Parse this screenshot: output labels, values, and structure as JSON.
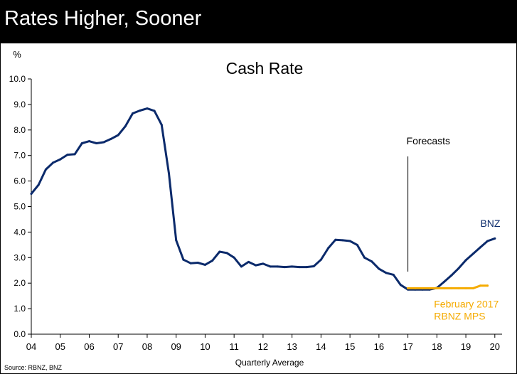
{
  "header": {
    "title": "Rates Higher, Sooner"
  },
  "source": "Source: RBNZ, BNZ",
  "colors": {
    "header_bg": "#000000",
    "bnz": "#0b2a6b",
    "mps": "#f5ab00",
    "text": "#000000"
  },
  "chart_data": {
    "type": "line",
    "title": "Cash Rate",
    "xlabel": "Quarterly Average",
    "ylabel": "%",
    "ylim": [
      0,
      10
    ],
    "yticks": [
      "0.0",
      "1.0",
      "2.0",
      "3.0",
      "4.0",
      "5.0",
      "6.0",
      "7.0",
      "8.0",
      "9.0",
      "10.0"
    ],
    "xlim": [
      2004,
      2020.25
    ],
    "xticks": [
      {
        "label": "04",
        "x": 2004
      },
      {
        "label": "05",
        "x": 2005
      },
      {
        "label": "06",
        "x": 2006
      },
      {
        "label": "07",
        "x": 2007
      },
      {
        "label": "08",
        "x": 2008
      },
      {
        "label": "09",
        "x": 2009
      },
      {
        "label": "10",
        "x": 2010
      },
      {
        "label": "11",
        "x": 2011
      },
      {
        "label": "12",
        "x": 2012
      },
      {
        "label": "13",
        "x": 2013
      },
      {
        "label": "14",
        "x": 2014
      },
      {
        "label": "15",
        "x": 2015
      },
      {
        "label": "16",
        "x": 2016
      },
      {
        "label": "17",
        "x": 2017
      },
      {
        "label": "18",
        "x": 2018
      },
      {
        "label": "19",
        "x": 2019
      },
      {
        "label": "20",
        "x": 2020
      }
    ],
    "grid": false,
    "annotation": {
      "label": "Forecasts",
      "x": 2017
    },
    "series": [
      {
        "name": "BNZ",
        "color": "#0b2a6b",
        "points": [
          [
            2004.0,
            5.5
          ],
          [
            2004.25,
            5.85
          ],
          [
            2004.5,
            6.45
          ],
          [
            2004.75,
            6.72
          ],
          [
            2005.0,
            6.85
          ],
          [
            2005.25,
            7.03
          ],
          [
            2005.5,
            7.05
          ],
          [
            2005.75,
            7.48
          ],
          [
            2006.0,
            7.56
          ],
          [
            2006.25,
            7.48
          ],
          [
            2006.5,
            7.52
          ],
          [
            2006.75,
            7.65
          ],
          [
            2007.0,
            7.8
          ],
          [
            2007.25,
            8.15
          ],
          [
            2007.5,
            8.65
          ],
          [
            2007.75,
            8.76
          ],
          [
            2008.0,
            8.84
          ],
          [
            2008.25,
            8.75
          ],
          [
            2008.5,
            8.2
          ],
          [
            2008.75,
            6.3
          ],
          [
            2009.0,
            3.68
          ],
          [
            2009.25,
            2.92
          ],
          [
            2009.5,
            2.78
          ],
          [
            2009.75,
            2.8
          ],
          [
            2010.0,
            2.72
          ],
          [
            2010.25,
            2.88
          ],
          [
            2010.5,
            3.23
          ],
          [
            2010.75,
            3.18
          ],
          [
            2011.0,
            3.0
          ],
          [
            2011.25,
            2.65
          ],
          [
            2011.5,
            2.83
          ],
          [
            2011.75,
            2.7
          ],
          [
            2012.0,
            2.76
          ],
          [
            2012.25,
            2.65
          ],
          [
            2012.5,
            2.65
          ],
          [
            2012.75,
            2.63
          ],
          [
            2013.0,
            2.65
          ],
          [
            2013.25,
            2.63
          ],
          [
            2013.5,
            2.63
          ],
          [
            2013.75,
            2.66
          ],
          [
            2014.0,
            2.92
          ],
          [
            2014.25,
            3.37
          ],
          [
            2014.5,
            3.7
          ],
          [
            2014.75,
            3.68
          ],
          [
            2015.0,
            3.65
          ],
          [
            2015.25,
            3.5
          ],
          [
            2015.5,
            3.0
          ],
          [
            2015.75,
            2.85
          ],
          [
            2016.0,
            2.56
          ],
          [
            2016.25,
            2.4
          ],
          [
            2016.5,
            2.33
          ],
          [
            2016.75,
            1.93
          ],
          [
            2017.0,
            1.75
          ],
          [
            2017.25,
            1.75
          ],
          [
            2017.5,
            1.75
          ],
          [
            2017.75,
            1.75
          ],
          [
            2018.0,
            1.81
          ],
          [
            2018.25,
            2.05
          ],
          [
            2018.5,
            2.3
          ],
          [
            2018.75,
            2.58
          ],
          [
            2019.0,
            2.9
          ],
          [
            2019.25,
            3.15
          ],
          [
            2019.5,
            3.4
          ],
          [
            2019.75,
            3.65
          ],
          [
            2020.0,
            3.75
          ]
        ],
        "label_x": 2019.5,
        "label_y": 4.2
      },
      {
        "name": "February 2017\nRBNZ MPS",
        "color": "#f5ab00",
        "points": [
          [
            2017.0,
            1.8
          ],
          [
            2017.25,
            1.8
          ],
          [
            2017.5,
            1.8
          ],
          [
            2017.75,
            1.8
          ],
          [
            2018.0,
            1.8
          ],
          [
            2018.25,
            1.8
          ],
          [
            2018.5,
            1.8
          ],
          [
            2018.75,
            1.8
          ],
          [
            2019.0,
            1.8
          ],
          [
            2019.25,
            1.8
          ],
          [
            2019.5,
            1.9
          ],
          [
            2019.75,
            1.9
          ]
        ],
        "label_x": 2017.9,
        "label_y": 1.05
      }
    ]
  }
}
